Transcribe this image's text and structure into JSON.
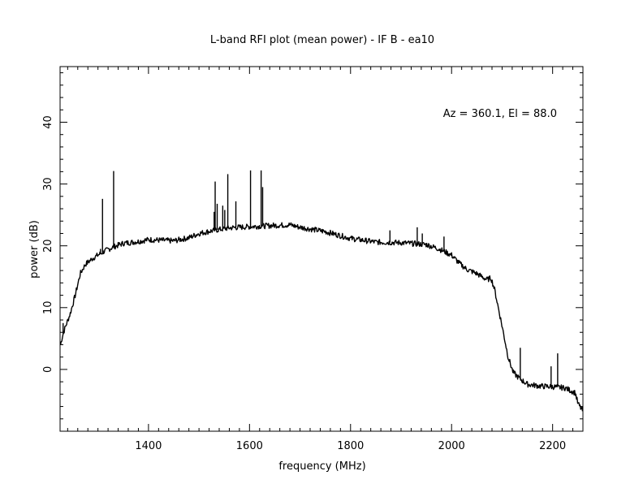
{
  "chart_data": {
    "type": "line",
    "title": "L-band RFI plot (mean power) - IF B - ea10",
    "xlabel": "frequency (MHz)",
    "ylabel": "power (dB)",
    "annotation": "Az = 360.1, El = 88.0",
    "xlim": [
      1225,
      2260
    ],
    "ylim": [
      -10,
      49
    ],
    "x_ticks": [
      1400,
      1600,
      1800,
      2000,
      2200
    ],
    "x_tick_labels": [
      "1400",
      "1600",
      "1800",
      "2000",
      "2200"
    ],
    "y_ticks": [
      0,
      10,
      20,
      30,
      40
    ],
    "y_tick_labels": [
      "0",
      "10",
      "20",
      "30",
      "40"
    ],
    "grid": false,
    "line_color": "#000000",
    "series": [
      {
        "baseline": [
          [
            1226,
            4.0
          ],
          [
            1230,
            5.5
          ],
          [
            1236,
            7.0
          ],
          [
            1245,
            9.0
          ],
          [
            1255,
            12.0
          ],
          [
            1265,
            15.5
          ],
          [
            1275,
            17.0
          ],
          [
            1290,
            18.0
          ],
          [
            1310,
            19.0
          ],
          [
            1330,
            19.8
          ],
          [
            1350,
            20.4
          ],
          [
            1380,
            20.7
          ],
          [
            1400,
            21.0
          ],
          [
            1450,
            20.8
          ],
          [
            1480,
            21.3
          ],
          [
            1500,
            22.0
          ],
          [
            1530,
            22.5
          ],
          [
            1560,
            22.9
          ],
          [
            1600,
            23.1
          ],
          [
            1650,
            23.3
          ],
          [
            1680,
            23.4
          ],
          [
            1700,
            23.0
          ],
          [
            1750,
            22.3
          ],
          [
            1800,
            21.2
          ],
          [
            1850,
            20.6
          ],
          [
            1900,
            20.5
          ],
          [
            1950,
            20.2
          ],
          [
            1975,
            19.5
          ],
          [
            2000,
            18.5
          ],
          [
            2015,
            17.2
          ],
          [
            2030,
            16.2
          ],
          [
            2050,
            15.5
          ],
          [
            2070,
            14.5
          ],
          [
            2078,
            14.8
          ],
          [
            2085,
            13.0
          ],
          [
            2100,
            7.0
          ],
          [
            2112,
            2.0
          ],
          [
            2122,
            -0.5
          ],
          [
            2135,
            -1.5
          ],
          [
            2150,
            -2.4
          ],
          [
            2175,
            -2.7
          ],
          [
            2200,
            -2.8
          ],
          [
            2225,
            -3.0
          ],
          [
            2245,
            -3.8
          ],
          [
            2250,
            -5.5
          ],
          [
            2260,
            -6.8
          ]
        ],
        "spikes": [
          [
            1231,
            7.5
          ],
          [
            1305,
            19.5
          ],
          [
            1309,
            27.6
          ],
          [
            1331,
            32.1
          ],
          [
            1530,
            25.5
          ],
          [
            1532,
            30.4
          ],
          [
            1536,
            26.8
          ],
          [
            1547,
            26.5
          ],
          [
            1551,
            25.8
          ],
          [
            1557,
            31.6
          ],
          [
            1573,
            27.2
          ],
          [
            1602,
            32.2
          ],
          [
            1623,
            32.2
          ],
          [
            1626,
            29.5
          ],
          [
            1878,
            22.5
          ],
          [
            1932,
            23.0
          ],
          [
            1942,
            22.0
          ],
          [
            1985,
            21.5
          ],
          [
            2136,
            3.5
          ],
          [
            2197,
            0.5
          ],
          [
            2210,
            2.6
          ]
        ]
      }
    ]
  }
}
